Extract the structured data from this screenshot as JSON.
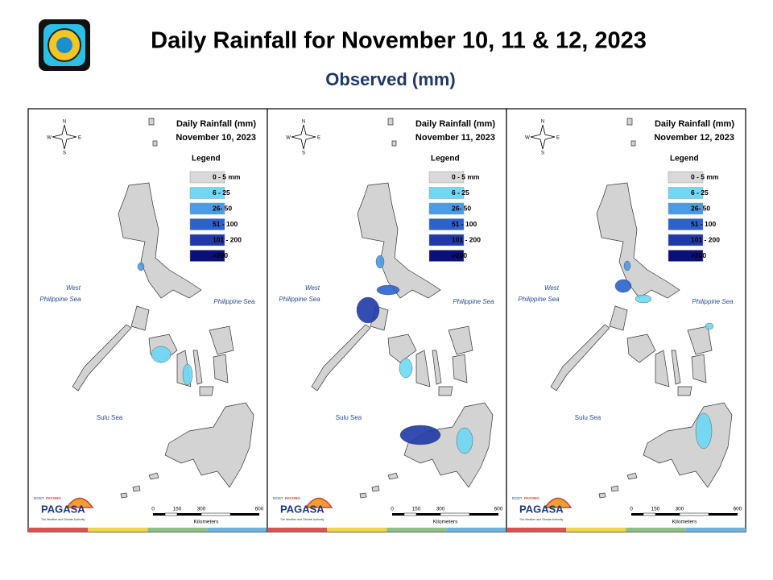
{
  "header": {
    "title": "Daily Rainfall for November 10, 11 & 12, 2023",
    "subtitle": "Observed (mm)"
  },
  "legend": {
    "title": "Legend",
    "items": [
      {
        "label": "0 - 5 mm",
        "color": "#d9d9d9"
      },
      {
        "label": "6 - 25",
        "color": "#6ed8f5"
      },
      {
        "label": "26- 50",
        "color": "#4a9be6"
      },
      {
        "label": "51 - 100",
        "color": "#2c62d0"
      },
      {
        "label": "101 - 200",
        "color": "#1f3aa8"
      },
      {
        "label": ">200",
        "color": "#0a0f7a"
      }
    ]
  },
  "panels": [
    {
      "heading": "Daily Rainfall (mm)",
      "date": "November 10, 2023"
    },
    {
      "heading": "Daily Rainfall (mm)",
      "date": "November 11, 2023"
    },
    {
      "heading": "Daily Rainfall (mm)",
      "date": "November 12, 2023"
    }
  ],
  "sea_labels": {
    "west": [
      "West",
      "Philippine Sea"
    ],
    "east": "Philippine Sea",
    "sulu": "Sulu Sea"
  },
  "compass": [
    "N",
    "E",
    "S",
    "W"
  ],
  "scale": {
    "ticks": [
      "0",
      "150",
      "300",
      "600"
    ],
    "unit": "Kilometers"
  },
  "logo": {
    "top": "DOST",
    "brand": "PAYONG",
    "name": "PAGASA",
    "tagline": "The Weather and Climate Authority"
  }
}
